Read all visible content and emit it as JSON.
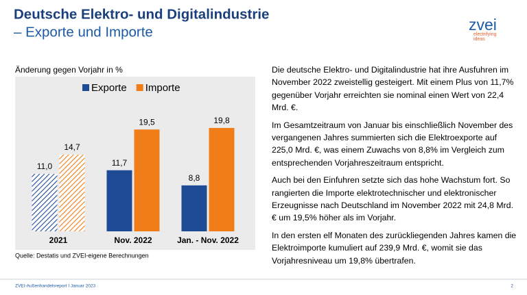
{
  "header": {
    "title": "Deutsche Elektro- und Digitalindustrie",
    "subtitle": "– Exporte und Importe",
    "logo": "zvei",
    "logo_tagline": [
      "electrifying",
      "ideas"
    ]
  },
  "chart_data": {
    "type": "bar",
    "title": "Änderung gegen Vorjahr in %",
    "categories": [
      "2021",
      "Nov. 2022",
      "Jan. - Nov. 2022"
    ],
    "series": [
      {
        "name": "Exporte",
        "color": "#1f4a96",
        "values": [
          11.0,
          11.7,
          8.8
        ],
        "value_labels": [
          "11,0",
          "11,7",
          "8,8"
        ]
      },
      {
        "name": "Importe",
        "color": "#f07d17",
        "values": [
          14.7,
          19.5,
          19.8
        ],
        "value_labels": [
          "14,7",
          "19,5",
          "19,8"
        ]
      }
    ],
    "hatched": [
      true,
      false,
      false
    ],
    "legend": "top",
    "source": "Quelle: Destatis und ZVEI-eigene Berechnungen"
  },
  "text": {
    "paragraphs": [
      "Die deutsche Elektro- und Digitalindustrie hat ihre Ausfuhren im November 2022 zweistellig gesteigert. Mit einem Plus von 11,7% gegenüber Vorjahr erreichten sie nominal einen Wert von 22,4 Mrd. €.",
      "Im Gesamtzeitraum von Januar bis einschließlich November des vergangenen Jahres summierten sich die Elektroexporte auf 225,0 Mrd. €, was einem Zuwachs von 8,8% im Vergleich zum entsprechenden Vorjahreszeitraum entspricht.",
      "Auch bei den Einfuhren setzte sich das hohe Wachstum fort. So rangierten die Importe elektrotechnischer und elektronischer Erzeugnisse nach Deutschland im November 2022 mit 24,8 Mrd. € um 19,5% höher als im Vorjahr.",
      "In den ersten elf Monaten des zurückliegenden Jahres kamen die Elektroimporte kumuliert auf 239,9 Mrd. €, womit sie das Vorjahresniveau um 19,8% übertrafen."
    ]
  },
  "footer": {
    "left": "ZVEI-Außenhandelsreport I Januar 2023",
    "page": "2"
  }
}
